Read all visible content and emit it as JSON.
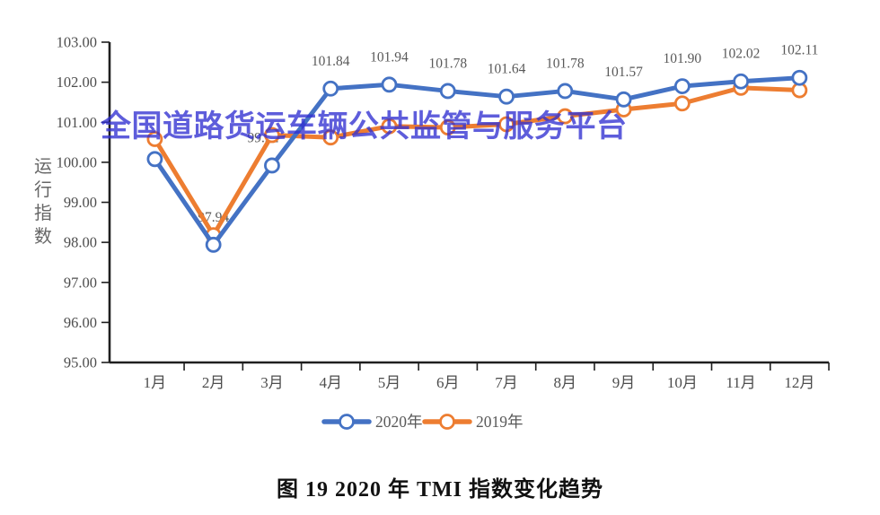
{
  "chart_data": {
    "type": "line",
    "title": "图 19 2020 年 TMI 指数变化趋势",
    "ylabel": "运行指数",
    "xlabel": "",
    "ylim": [
      95,
      103
    ],
    "ytick_step": 1,
    "ytick_format_decimals": 2,
    "grid": false,
    "legend_position": "bottom",
    "categories": [
      "1月",
      "2月",
      "3月",
      "4月",
      "5月",
      "6月",
      "7月",
      "8月",
      "9月",
      "10月",
      "11月",
      "12月"
    ],
    "series": [
      {
        "name": "2019年",
        "color": "#ED7D31",
        "values": [
          100.58,
          98.18,
          100.68,
          100.62,
          100.9,
          100.87,
          100.95,
          101.15,
          101.32,
          101.47,
          101.86,
          101.8
        ],
        "labels": [
          null,
          null,
          null,
          null,
          null,
          null,
          null,
          null,
          null,
          null,
          null,
          null
        ]
      },
      {
        "name": "2020年",
        "color": "#4472C4",
        "values": [
          100.08,
          97.94,
          99.92,
          101.84,
          101.94,
          101.78,
          101.64,
          101.78,
          101.57,
          101.9,
          102.02,
          102.11
        ],
        "labels": [
          null,
          "97.94",
          "99.92",
          "101.84",
          "101.94",
          "101.78",
          "101.64",
          "101.78",
          "101.57",
          "101.90",
          "102.02",
          "102.11"
        ]
      }
    ],
    "legend_order": [
      "2020年",
      "2019年"
    ],
    "label_color": "#595959",
    "axis_text_color": "#4d4d4d",
    "axis_line_color": "#1f1f1f",
    "watermark": {
      "text": "全国道路货运车辆公共监管与服务平台",
      "color": "#3230D2"
    }
  }
}
